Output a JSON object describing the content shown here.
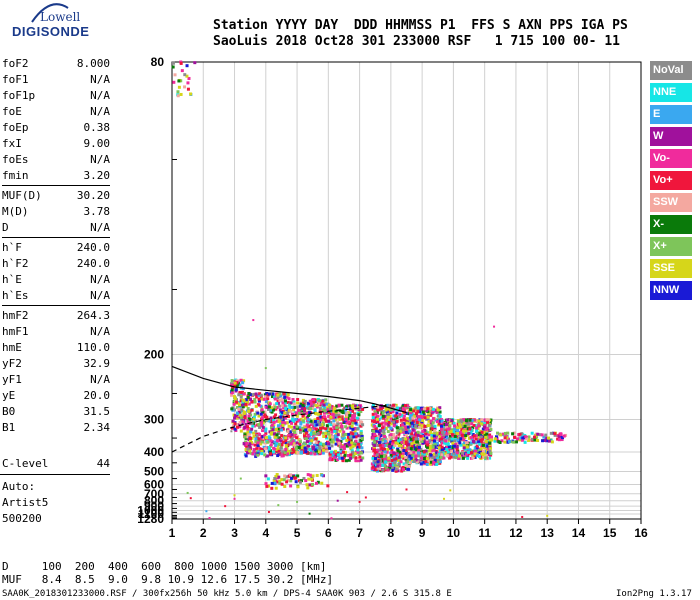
{
  "logo": {
    "line1": "Lowell",
    "line2": "DIGISONDE"
  },
  "header": {
    "line1": "Station YYYY DAY  DDD HHMMSS P1  FFS S AXN PPS IGA PS",
    "line2": "SaoLuis 2018 Oct28 301 233000 RSF   1 715 100 00- 11"
  },
  "params": [
    [
      {
        "name": "foF2",
        "value": "8.000"
      },
      {
        "name": "foF1",
        "value": "N/A"
      },
      {
        "name": "foF1p",
        "value": "N/A"
      },
      {
        "name": "foE",
        "value": "N/A"
      },
      {
        "name": "foEp",
        "value": "0.38"
      },
      {
        "name": "fxI",
        "value": "9.00"
      },
      {
        "name": "foEs",
        "value": "N/A"
      },
      {
        "name": "fmin",
        "value": "3.20"
      }
    ],
    [
      {
        "name": "MUF(D)",
        "value": "30.20"
      },
      {
        "name": "M(D)",
        "value": "3.78"
      },
      {
        "name": "D",
        "value": "N/A"
      }
    ],
    [
      {
        "name": "h`F",
        "value": "240.0"
      },
      {
        "name": "h`F2",
        "value": "240.0"
      },
      {
        "name": "h`E",
        "value": "N/A"
      },
      {
        "name": "h`Es",
        "value": "N/A"
      }
    ],
    [
      {
        "name": "hmF2",
        "value": "264.3"
      },
      {
        "name": "hmF1",
        "value": "N/A"
      },
      {
        "name": "hmE",
        "value": "110.0"
      },
      {
        "name": "yF2",
        "value": "32.9"
      },
      {
        "name": "yF1",
        "value": "N/A"
      },
      {
        "name": "yE",
        "value": "20.0"
      },
      {
        "name": "B0",
        "value": "31.5"
      },
      {
        "name": "B1",
        "value": "2.34"
      }
    ]
  ],
  "clevel": {
    "name": "C-level",
    "value": "44"
  },
  "auto": [
    "Auto:",
    "Artist5",
    "500200"
  ],
  "legend": [
    {
      "label": "NoVal",
      "color": "#8c8c8c"
    },
    {
      "label": "NNE",
      "color": "#16e6e6"
    },
    {
      "label": "E",
      "color": "#3aa8f0"
    },
    {
      "label": "W",
      "color": "#a0119c"
    },
    {
      "label": "Vo-",
      "color": "#f02b9c"
    },
    {
      "label": "Vo+",
      "color": "#f0163c"
    },
    {
      "label": "SSW",
      "color": "#f4a8a0"
    },
    {
      "label": "X-",
      "color": "#0a7a0a"
    },
    {
      "label": "X+",
      "color": "#7ec55a"
    },
    {
      "label": "SSE",
      "color": "#d6d61a"
    },
    {
      "label": "NNW",
      "color": "#1a1ad6"
    }
  ],
  "footer": {
    "d_row": "D     100  200  400  600  800 1000 1500 3000 [km]",
    "muf_row": "MUF   8.4  8.5  9.0  9.8 10.9 12.6 17.5 30.2 [MHz]",
    "file": "SAA0K_2018301233000.RSF / 300fx256h 50 kHz 5.0 km / DPS-4 SAA0K 903 / 2.6 S 315.8 E",
    "version": "Ion2Png 1.3.17"
  },
  "chart_data": {
    "type": "scatter",
    "xlim": [
      1,
      16
    ],
    "ylim": [
      80,
      1280
    ],
    "x_ticks": [
      "1",
      "2",
      "3",
      "4",
      "5",
      "6",
      "7",
      "8",
      "9",
      "10",
      "11",
      "12",
      "13",
      "14",
      "15",
      "16"
    ],
    "y_ticks": [
      "80",
      "200",
      "300",
      "400",
      "500",
      "600",
      "700",
      "800",
      "900",
      "1000",
      "1100",
      "1280"
    ],
    "y_tick_values": [
      80,
      200,
      300,
      400,
      500,
      600,
      700,
      800,
      900,
      1000,
      1100,
      1280
    ],
    "y_scale": "reciprocal",
    "grid": true,
    "legend_position": "right",
    "clusters": [
      {
        "x": [
          2.9,
          3.3
        ],
        "y": [
          230,
          330
        ],
        "n": 140
      },
      {
        "x": [
          3.3,
          4.8
        ],
        "y": [
          250,
          420
        ],
        "n": 520
      },
      {
        "x": [
          4.8,
          6.0
        ],
        "y": [
          260,
          410
        ],
        "n": 420
      },
      {
        "x": [
          6.0,
          7.1
        ],
        "y": [
          270,
          440
        ],
        "n": 380
      },
      {
        "x": [
          7.4,
          8.6
        ],
        "y": [
          270,
          500
        ],
        "n": 650
      },
      {
        "x": [
          8.6,
          9.6
        ],
        "y": [
          275,
          460
        ],
        "n": 520
      },
      {
        "x": [
          9.6,
          11.2
        ],
        "y": [
          300,
          430
        ],
        "n": 560
      },
      {
        "x": [
          11.2,
          13.6
        ],
        "y": [
          335,
          365
        ],
        "n": 110
      },
      {
        "x": [
          4.0,
          6.0
        ],
        "y": [
          520,
          640
        ],
        "n": 70
      },
      {
        "x": [
          1.0,
          1.8
        ],
        "y": [
          80,
          86
        ],
        "n": 25
      }
    ],
    "sparse": [
      [
        1.5,
        690
      ],
      [
        1.6,
        760
      ],
      [
        2.1,
        1020
      ],
      [
        2.2,
        1240
      ],
      [
        2.7,
        900
      ],
      [
        3.0,
        770
      ],
      [
        3.0,
        720
      ],
      [
        3.2,
        550
      ],
      [
        2.9,
        330
      ],
      [
        4.1,
        1040
      ],
      [
        4.4,
        880
      ],
      [
        5.0,
        820
      ],
      [
        6.1,
        1250
      ],
      [
        6.3,
        800
      ],
      [
        7.0,
        820
      ],
      [
        7.2,
        750
      ],
      [
        8.5,
        650
      ],
      [
        9.7,
        770
      ],
      [
        9.9,
        660
      ],
      [
        12.2,
        1200
      ],
      [
        13.0,
        1160
      ],
      [
        11.3,
        175
      ],
      [
        3.6,
        170
      ],
      [
        4.0,
        215
      ],
      [
        5.4,
        1090
      ],
      [
        6.6,
        680
      ]
    ],
    "curves": [
      {
        "style": "dashed",
        "x": [
          1.0,
          1.5,
          2.0,
          2.5,
          3.0,
          3.5,
          4.0,
          4.5,
          5.0,
          5.5,
          6.0,
          6.5,
          7.0,
          7.5,
          8.0
        ],
        "y": [
          400,
          370,
          345,
          330,
          318,
          308,
          300,
          295,
          290,
          286,
          282,
          279,
          276,
          273,
          270
        ]
      },
      {
        "style": "solid",
        "x": [
          1.0,
          2.0,
          3.0,
          4.0,
          5.0,
          6.0,
          7.0,
          7.5,
          8.0,
          8.5
        ],
        "y": [
          213,
          228,
          240,
          245,
          250,
          255,
          262,
          268,
          276,
          285
        ]
      }
    ]
  }
}
